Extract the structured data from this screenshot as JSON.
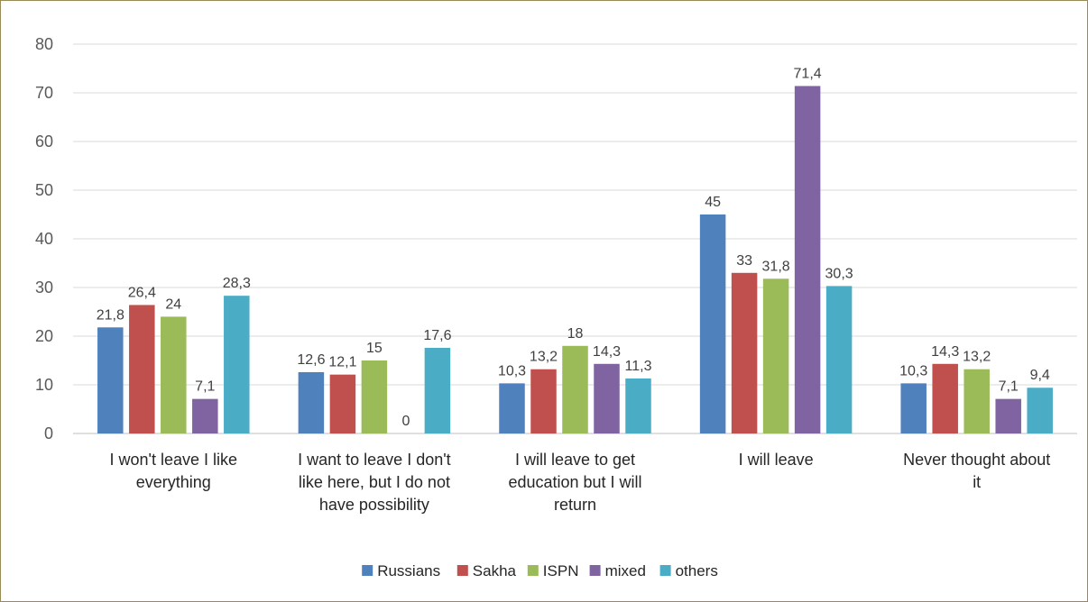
{
  "chart_data": {
    "type": "bar",
    "ylim": [
      0,
      80
    ],
    "yticks": [
      0,
      10,
      20,
      30,
      40,
      50,
      60,
      70,
      80
    ],
    "grid": true,
    "legend_position": "bottom",
    "categories": [
      [
        "I won't leave I like",
        "everything"
      ],
      [
        "I want to leave I don't",
        "like here, but I do not",
        "have possibility"
      ],
      [
        "I will leave to get",
        "education but I will",
        "return"
      ],
      [
        "I will leave"
      ],
      [
        "Never thought about",
        "it"
      ]
    ],
    "series": [
      {
        "name": "Russians",
        "color": "#4f81bd",
        "values": [
          21.8,
          12.6,
          10.3,
          45,
          10.3
        ],
        "labels": [
          "21,8",
          "12,6",
          "10,3",
          "45",
          "10,3"
        ]
      },
      {
        "name": "Sakha",
        "color": "#c0504d",
        "values": [
          26.4,
          12.1,
          13.2,
          33,
          14.3
        ],
        "labels": [
          "26,4",
          "12,1",
          "13,2",
          "33",
          "14,3"
        ]
      },
      {
        "name": "ISPN",
        "color": "#9bbb59",
        "values": [
          24,
          15,
          18,
          31.8,
          13.2
        ],
        "labels": [
          "24",
          "15",
          "18",
          "31,8",
          "13,2"
        ]
      },
      {
        "name": "mixed",
        "color": "#8064a2",
        "values": [
          7.1,
          0,
          14.3,
          71.4,
          7.1
        ],
        "labels": [
          "7,1",
          "0",
          "14,3",
          "71,4",
          "7,1"
        ]
      },
      {
        "name": "others",
        "color": "#4bacc6",
        "values": [
          28.3,
          17.6,
          11.3,
          30.3,
          9.4
        ],
        "labels": [
          "28,3",
          "17,6",
          "11,3",
          "30,3",
          "9,4"
        ]
      }
    ]
  }
}
